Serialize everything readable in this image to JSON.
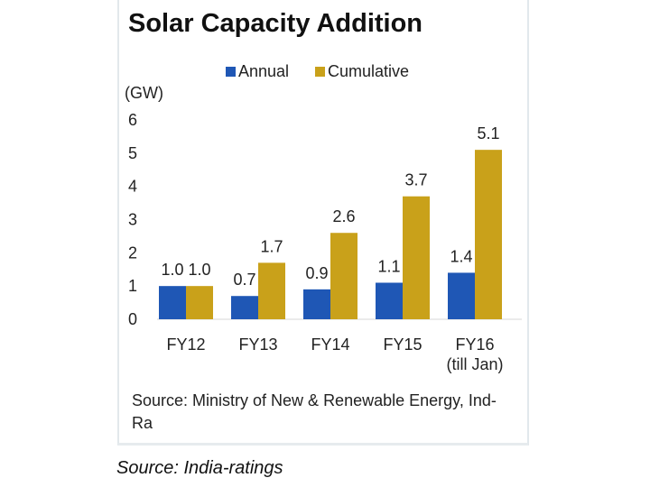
{
  "chart_data": {
    "type": "bar",
    "title": "Solar Capacity Addition",
    "ylabel": "(GW)",
    "xlabel": "",
    "ylim": [
      0,
      6
    ],
    "yticks": [
      0,
      1,
      2,
      3,
      4,
      5,
      6
    ],
    "grid": false,
    "legend_position": "top",
    "categories": [
      {
        "line1": "FY12",
        "line2": ""
      },
      {
        "line1": "FY13",
        "line2": ""
      },
      {
        "line1": "FY14",
        "line2": ""
      },
      {
        "line1": "FY15",
        "line2": ""
      },
      {
        "line1": "FY16",
        "line2": "(till Jan)"
      }
    ],
    "series": [
      {
        "name": "Annual",
        "color": "#1f57b5",
        "values": [
          1.0,
          0.7,
          0.9,
          1.1,
          1.4
        ],
        "labels": [
          "1.0",
          "0.7",
          "0.9",
          "1.1",
          "1.4"
        ]
      },
      {
        "name": "Cumulative",
        "color": "#c9a11a",
        "values": [
          1.0,
          1.7,
          2.6,
          3.7,
          5.1
        ],
        "labels": [
          "1.0",
          "1.7",
          "2.6",
          "3.7",
          "5.1"
        ]
      }
    ]
  },
  "source_note": "Source: Ministry of New & Renewable Energy, Ind-Ra",
  "caption": "Source: India-ratings"
}
